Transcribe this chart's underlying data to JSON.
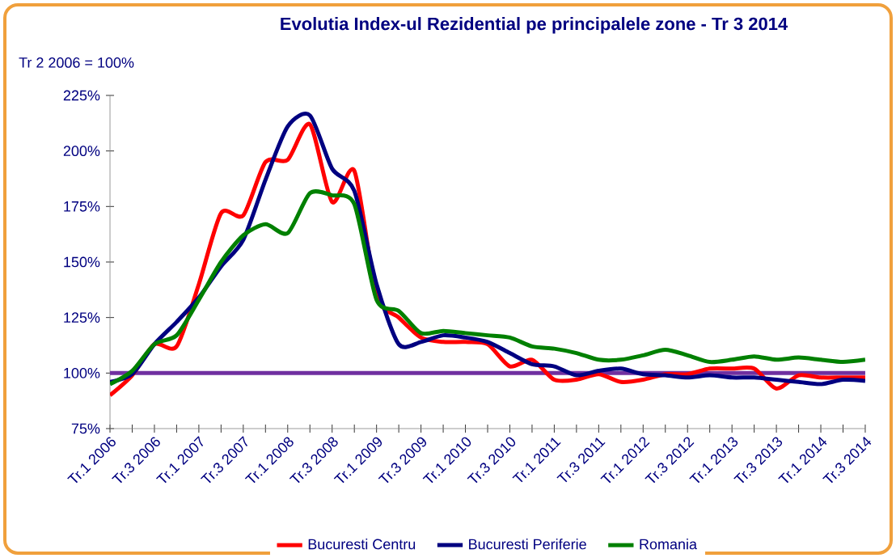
{
  "chart_data": {
    "type": "line",
    "title": "Evolutia Index-ul Rezidential pe principalele zone - Tr 3 2014",
    "annotations": [
      "Tr 2 2006 = 100%"
    ],
    "categories": [
      "Tr.1 2006",
      null,
      "Tr.3 2006",
      null,
      "Tr.1 2007",
      null,
      "Tr.3 2007",
      null,
      "Tr.1 2008",
      null,
      "Tr.3 2008",
      null,
      "Tr.1 2009",
      null,
      "Tr.3 2009",
      null,
      "Tr.1 2010",
      null,
      "Tr.3 2010",
      null,
      "Tr.1 2011",
      null,
      "Tr.3 2011",
      null,
      "Tr.1 2012",
      null,
      "Tr.3 2012",
      null,
      "Tr.1 2013",
      null,
      "Tr.3 2013",
      null,
      "Tr.1 2014",
      null,
      "Tr.3 2014"
    ],
    "series": [
      {
        "name": "Bucuresti Centru",
        "color": "#ff0000",
        "values": [
          90,
          99,
          113,
          112,
          140,
          172,
          171,
          195,
          196,
          212,
          177,
          191,
          135,
          125,
          116,
          114,
          114,
          113,
          103,
          106,
          97,
          97,
          99.5,
          96,
          97,
          99.5,
          99.5,
          102,
          102,
          102,
          93,
          99,
          98,
          98,
          98
        ]
      },
      {
        "name": "Bucuresti Periferie",
        "color": "#000080",
        "values": [
          96,
          99.5,
          113,
          123,
          134,
          148,
          160,
          187,
          211,
          216,
          192,
          182,
          140,
          113,
          114,
          117,
          116,
          114,
          109,
          104,
          103,
          99,
          101,
          102,
          99.5,
          99,
          98,
          99,
          98,
          98,
          97,
          96,
          95,
          97,
          96.5
        ]
      },
      {
        "name": "Romania",
        "color": "#008000",
        "values": [
          95,
          101,
          113,
          117,
          133,
          150,
          162,
          167,
          163,
          181,
          180,
          176,
          133,
          128,
          118,
          119,
          118,
          117,
          116,
          112,
          111,
          109,
          106,
          106,
          108,
          110.5,
          108,
          105,
          106,
          107.5,
          106,
          107,
          106,
          105,
          106
        ]
      }
    ],
    "ylim": [
      75,
      225
    ],
    "yticks": [
      {
        "value": 75,
        "label": "75%"
      },
      {
        "value": 100,
        "label": "100%"
      },
      {
        "value": 125,
        "label": "125%"
      },
      {
        "value": 150,
        "label": "150%"
      },
      {
        "value": 175,
        "label": "175%"
      },
      {
        "value": 200,
        "label": "200%"
      },
      {
        "value": 225,
        "label": "225%"
      }
    ],
    "ref_lines": [
      {
        "axis": "y",
        "value": 100,
        "color": "#7030a0"
      }
    ],
    "grid": false,
    "legend": "bottom",
    "marker": "none",
    "line_style": "solid"
  }
}
